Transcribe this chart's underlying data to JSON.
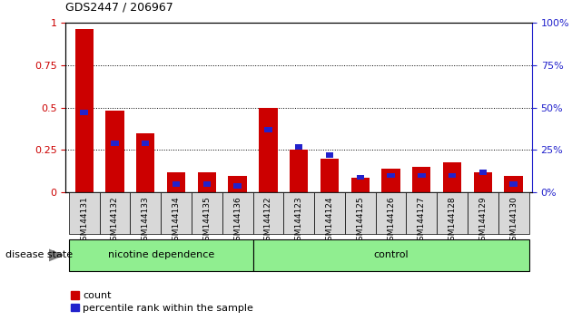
{
  "title": "GDS2447 / 206967",
  "samples": [
    "GSM144131",
    "GSM144132",
    "GSM144133",
    "GSM144134",
    "GSM144135",
    "GSM144136",
    "GSM144122",
    "GSM144123",
    "GSM144124",
    "GSM144125",
    "GSM144126",
    "GSM144127",
    "GSM144128",
    "GSM144129",
    "GSM144130"
  ],
  "count_values": [
    0.96,
    0.48,
    0.35,
    0.12,
    0.12,
    0.1,
    0.5,
    0.25,
    0.2,
    0.09,
    0.14,
    0.15,
    0.18,
    0.12,
    0.1
  ],
  "percentile_values": [
    0.47,
    0.29,
    0.29,
    0.05,
    0.05,
    0.04,
    0.37,
    0.27,
    0.22,
    0.09,
    0.1,
    0.1,
    0.1,
    0.12,
    0.05
  ],
  "count_color": "#cc0000",
  "percentile_color": "#2222cc",
  "group1_label": "nicotine dependence",
  "group2_label": "control",
  "group1_count": 6,
  "group2_count": 9,
  "group1_color": "#90ee90",
  "group2_color": "#90ee90",
  "disease_state_label": "disease state",
  "legend_count_label": "count",
  "legend_percentile_label": "percentile rank within the sample",
  "ylim_left": [
    0,
    1.0
  ],
  "ylim_right": [
    0,
    100
  ],
  "yticks_left": [
    0,
    0.25,
    0.5,
    0.75,
    1.0
  ],
  "yticks_right": [
    0,
    25,
    50,
    75,
    100
  ],
  "red_bar_width": 0.6,
  "blue_bar_width": 0.25,
  "bg_color": "#d8d8d8",
  "plot_bg": "#ffffff"
}
